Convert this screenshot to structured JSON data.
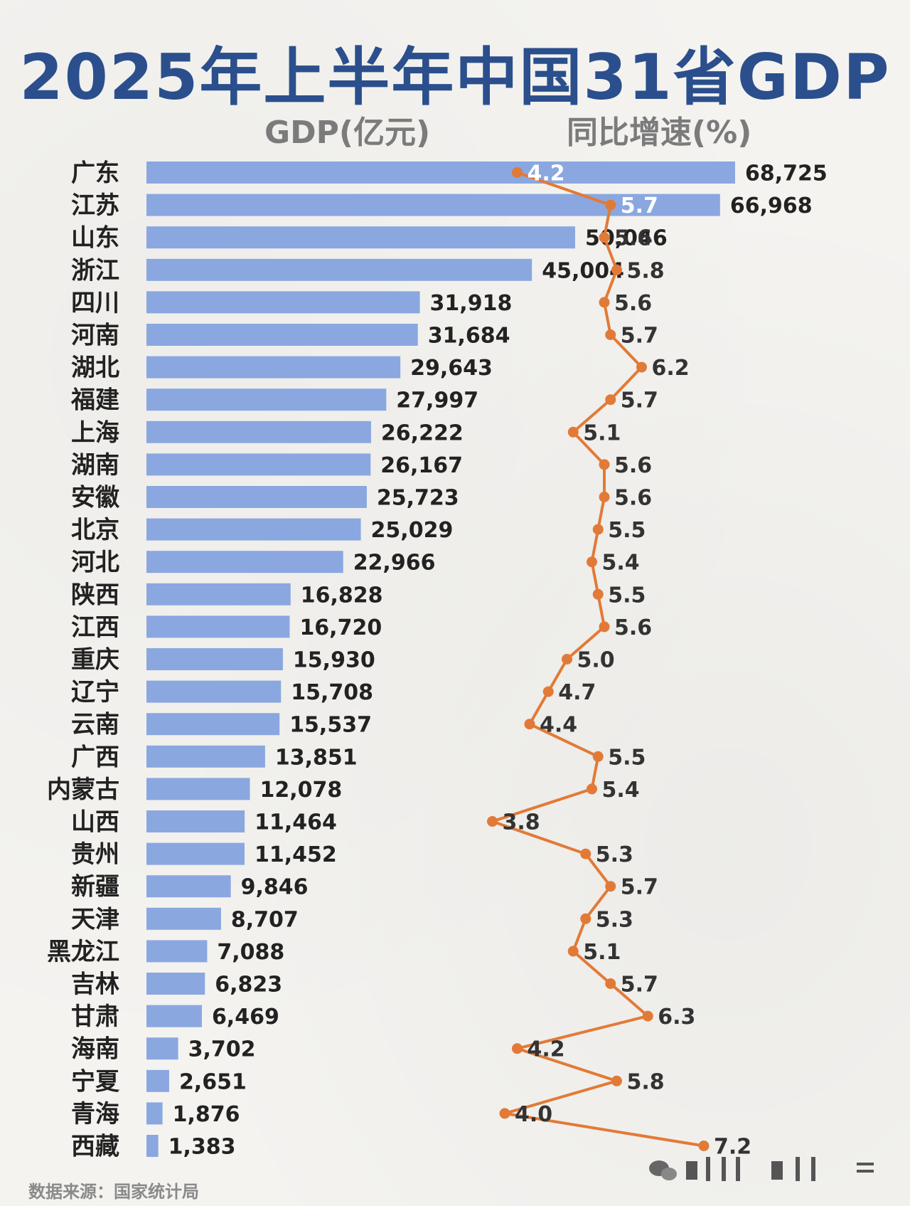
{
  "chart_data": {
    "type": "bar",
    "title": "2025年上半年中国31省GDP",
    "columns": {
      "bar_header": "GDP(亿元)",
      "line_header": "同比增速(%)"
    },
    "categories": [
      "广东",
      "江苏",
      "山东",
      "浙江",
      "四川",
      "河南",
      "湖北",
      "福建",
      "上海",
      "湖南",
      "安徽",
      "北京",
      "河北",
      "陕西",
      "江西",
      "重庆",
      "辽宁",
      "云南",
      "广西",
      "内蒙古",
      "山西",
      "贵州",
      "新疆",
      "天津",
      "黑龙江",
      "吉林",
      "甘肃",
      "海南",
      "宁夏",
      "青海",
      "西藏"
    ],
    "gdp_labels": [
      "68,725",
      "66,968",
      "50,046",
      "45,004",
      "31,918",
      "31,684",
      "29,643",
      "27,997",
      "26,222",
      "26,167",
      "25,723",
      "25,029",
      "22,966",
      "16,828",
      "16,720",
      "15,930",
      "15,708",
      "15,537",
      "13,851",
      "12,078",
      "11,464",
      "11,452",
      "9,846",
      "8,707",
      "7,088",
      "6,823",
      "6,469",
      "3,702",
      "2,651",
      "1,876",
      "1,383"
    ],
    "series": [
      {
        "type": "bar",
        "values": [
          68725,
          66968,
          50046,
          45004,
          31918,
          31684,
          29643,
          27997,
          26222,
          26167,
          25723,
          25029,
          22966,
          16828,
          16720,
          15930,
          15708,
          15537,
          13851,
          12078,
          11464,
          11452,
          9846,
          8707,
          7088,
          6823,
          6469,
          3702,
          2651,
          1876,
          1383
        ]
      },
      {
        "type": "line",
        "values": [
          4.2,
          5.7,
          5.6,
          5.8,
          5.6,
          5.7,
          6.2,
          5.7,
          5.1,
          5.6,
          5.6,
          5.5,
          5.4,
          5.5,
          5.6,
          5.0,
          4.7,
          4.4,
          5.5,
          5.4,
          3.8,
          5.3,
          5.7,
          5.3,
          5.1,
          5.7,
          6.3,
          4.2,
          5.8,
          4.0,
          7.2
        ],
        "labels": [
          "4.2",
          "5.7",
          "5.6",
          "5.8",
          "5.6",
          "5.7",
          "6.2",
          "5.7",
          "5.1",
          "5.6",
          "5.6",
          "5.5",
          "5.4",
          "5.5",
          "5.6",
          "5.0",
          "4.7",
          "4.4",
          "5.5",
          "5.4",
          "3.8",
          "5.3",
          "5.7",
          "5.3",
          "5.1",
          "5.7",
          "6.3",
          "4.2",
          "5.8",
          "4.0",
          "7.2"
        ]
      }
    ],
    "colors": {
      "bar": "#8aa7e0",
      "line": "#e27a37",
      "title": "#2b4f8c"
    }
  },
  "source": "数据来源：国家统计局"
}
